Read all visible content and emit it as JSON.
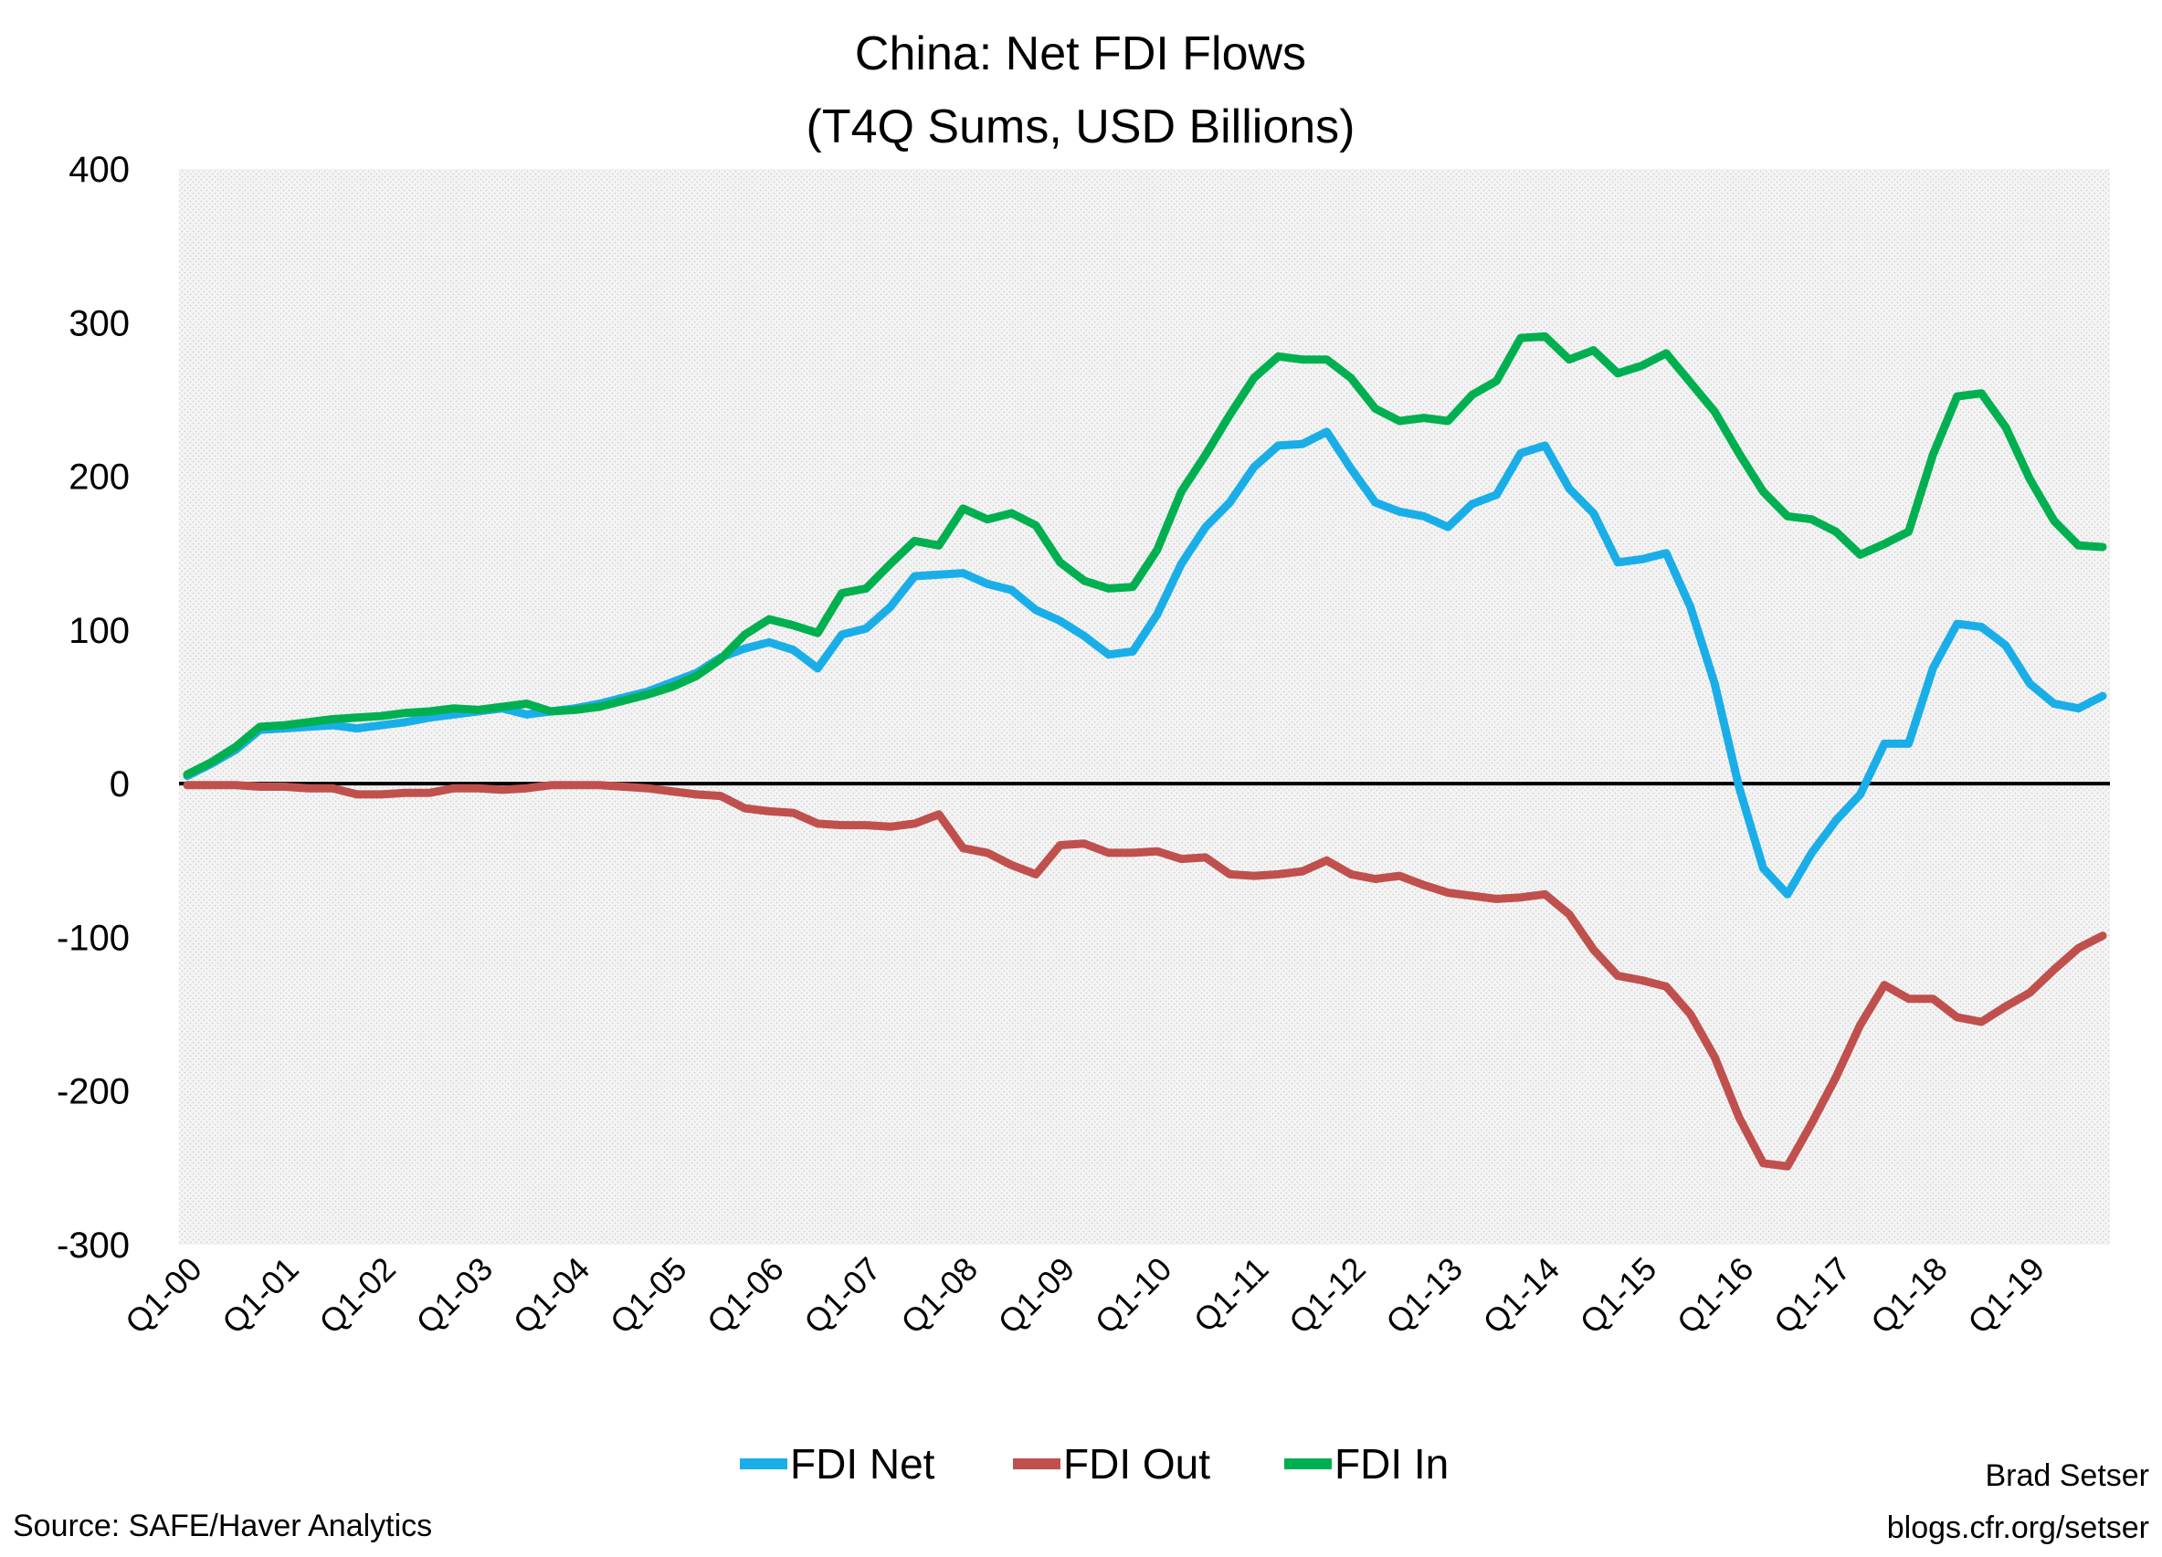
{
  "chart_data": {
    "type": "line",
    "title": "China: Net FDI Flows",
    "subtitle": "(T4Q Sums, USD Billions)",
    "xlabel": "",
    "ylabel": "",
    "ylim": [
      -300,
      400
    ],
    "yticks": [
      400,
      300,
      200,
      100,
      0,
      -100,
      -200,
      -300
    ],
    "grid": false,
    "legend_position": "bottom",
    "x_tick_labels": [
      "Q1-00",
      "Q1-01",
      "Q1-02",
      "Q1-03",
      "Q1-04",
      "Q1-05",
      "Q1-06",
      "Q1-07",
      "Q1-08",
      "Q1-09",
      "Q1-10",
      "Q1-11",
      "Q1-12",
      "Q1-13",
      "Q1-14",
      "Q1-15",
      "Q1-16",
      "Q1-17",
      "Q1-18",
      "Q1-19"
    ],
    "x": [
      "Q1-00",
      "Q2-00",
      "Q3-00",
      "Q4-00",
      "Q1-01",
      "Q2-01",
      "Q3-01",
      "Q4-01",
      "Q1-02",
      "Q2-02",
      "Q3-02",
      "Q4-02",
      "Q1-03",
      "Q2-03",
      "Q3-03",
      "Q4-03",
      "Q1-04",
      "Q2-04",
      "Q3-04",
      "Q4-04",
      "Q1-05",
      "Q2-05",
      "Q3-05",
      "Q4-05",
      "Q1-06",
      "Q2-06",
      "Q3-06",
      "Q4-06",
      "Q1-07",
      "Q2-07",
      "Q3-07",
      "Q4-07",
      "Q1-08",
      "Q2-08",
      "Q3-08",
      "Q4-08",
      "Q1-09",
      "Q2-09",
      "Q3-09",
      "Q4-09",
      "Q1-10",
      "Q2-10",
      "Q3-10",
      "Q4-10",
      "Q1-11",
      "Q2-11",
      "Q3-11",
      "Q4-11",
      "Q1-12",
      "Q2-12",
      "Q3-12",
      "Q4-12",
      "Q1-13",
      "Q2-13",
      "Q3-13",
      "Q4-13",
      "Q1-14",
      "Q2-14",
      "Q3-14",
      "Q4-14",
      "Q1-15",
      "Q2-15",
      "Q3-15",
      "Q4-15",
      "Q1-16",
      "Q2-16",
      "Q3-16",
      "Q4-16",
      "Q1-17",
      "Q2-17",
      "Q3-17",
      "Q4-17",
      "Q1-18",
      "Q2-18",
      "Q3-18",
      "Q4-18",
      "Q1-19",
      "Q2-19",
      "Q3-19",
      "Q4-19"
    ],
    "series": [
      {
        "name": "FDI Net",
        "color": "#1aaee8",
        "values": [
          5,
          13,
          22,
          35,
          36,
          37,
          38,
          36,
          38,
          40,
          43,
          45,
          47,
          49,
          45,
          47,
          49,
          52,
          56,
          60,
          66,
          72,
          82,
          88,
          92,
          87,
          75,
          97,
          101,
          115,
          135,
          136,
          137,
          130,
          126,
          113,
          106,
          96,
          84,
          86,
          110,
          143,
          167,
          183,
          206,
          220,
          221,
          229,
          205,
          183,
          177,
          174,
          167,
          182,
          188,
          215,
          220,
          192,
          176,
          144,
          146,
          150,
          115,
          65,
          -2,
          -55,
          -72,
          -45,
          -24,
          -7,
          26,
          26,
          75,
          104,
          102,
          90,
          65,
          52,
          49,
          57
        ]
      },
      {
        "name": "FDI Out",
        "color": "#c0504d",
        "values": [
          -1,
          -1,
          -1,
          -2,
          -2,
          -3,
          -3,
          -7,
          -7,
          -6,
          -6,
          -3,
          -3,
          -4,
          -3,
          -1,
          -1,
          -1,
          -2,
          -3,
          -5,
          -7,
          -8,
          -16,
          -18,
          -19,
          -26,
          -27,
          -27,
          -28,
          -26,
          -20,
          -42,
          -45,
          -53,
          -59,
          -40,
          -39,
          -45,
          -45,
          -44,
          -49,
          -48,
          -59,
          -60,
          -59,
          -57,
          -50,
          -59,
          -62,
          -60,
          -66,
          -71,
          -73,
          -75,
          -74,
          -72,
          -85,
          -108,
          -125,
          -128,
          -132,
          -150,
          -178,
          -217,
          -247,
          -249,
          -221,
          -191,
          -157,
          -131,
          -140,
          -140,
          -152,
          -155,
          -145,
          -136,
          -121,
          -107,
          -99
        ]
      },
      {
        "name": "FDI In",
        "color": "#00b050",
        "values": [
          6,
          14,
          24,
          37,
          38,
          40,
          42,
          43,
          44,
          46,
          47,
          49,
          48,
          50,
          52,
          47,
          48,
          50,
          54,
          58,
          63,
          70,
          81,
          97,
          107,
          103,
          98,
          124,
          127,
          143,
          158,
          155,
          179,
          172,
          176,
          168,
          144,
          132,
          127,
          128,
          152,
          190,
          214,
          240,
          264,
          278,
          276,
          276,
          264,
          244,
          236,
          238,
          236,
          253,
          262,
          290,
          291,
          276,
          282,
          267,
          272,
          280,
          261,
          242,
          215,
          190,
          174,
          172,
          164,
          149,
          156,
          164,
          214,
          252,
          254,
          232,
          198,
          171,
          155,
          154
        ]
      }
    ]
  },
  "footer": {
    "source": "Source: SAFE/Haver Analytics",
    "author": "Brad Setser",
    "url": "blogs.cfr.org/setser"
  }
}
